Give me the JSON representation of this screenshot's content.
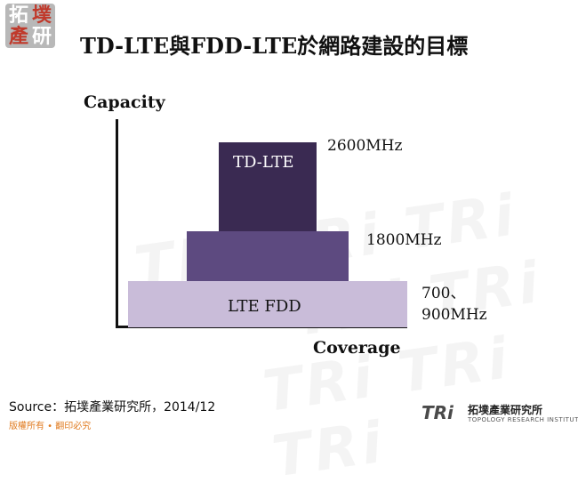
{
  "logo": {
    "chars": [
      "拓",
      "墣",
      "產",
      "研"
    ]
  },
  "title": "TD-LTE與FDD-LTE於網路建設的目標",
  "diagram": {
    "y_axis_label": "Capacity",
    "x_axis_label": "Coverage",
    "tiers": [
      {
        "label": "TD-LTE",
        "frequency_lines": [
          "2600MHz"
        ],
        "color": "#3a2a52"
      },
      {
        "label": "",
        "frequency_lines": [
          "1800MHz"
        ],
        "color": "#5d4a80"
      },
      {
        "label": "LTE FDD",
        "frequency_lines": [
          "700、",
          "900MHz"
        ],
        "color": "#c9bcd9"
      }
    ]
  },
  "source": "Source：拓墣產業研究所，2014/12",
  "copyright": "版權所有 • 翻印必究",
  "footer_logo": {
    "mark": "TRi",
    "name_cn": "拓墣產業研究所",
    "name_en": "TOPOLOGY RESEARCH INSTITUTE"
  }
}
